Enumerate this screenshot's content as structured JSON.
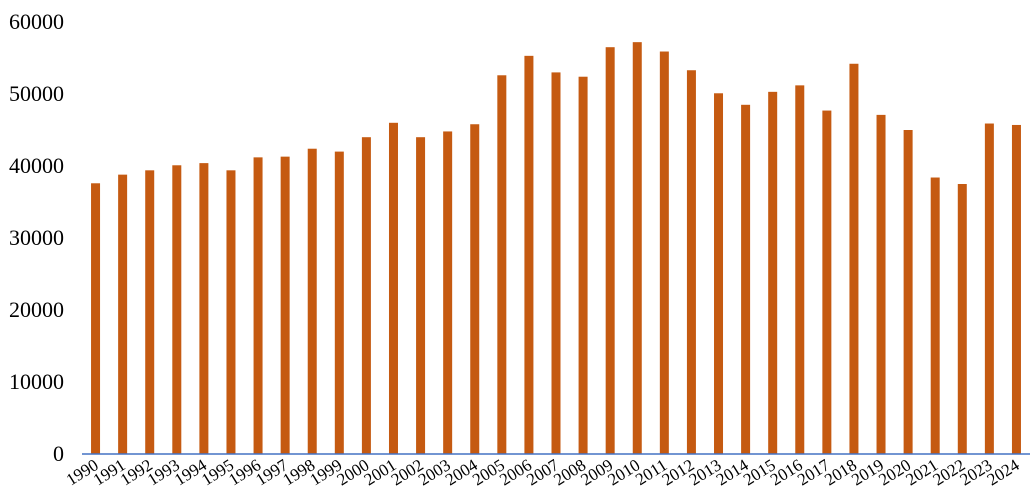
{
  "colors": {
    "bar": "#C55A11",
    "axis_line": "#4472C4",
    "text": "#000000",
    "background": "#FFFFFF"
  },
  "chart_data": {
    "type": "bar",
    "title": "",
    "xlabel": "",
    "ylabel": "",
    "ylim": [
      0,
      60000
    ],
    "yticks": [
      0,
      10000,
      20000,
      30000,
      40000,
      50000,
      60000
    ],
    "grid": false,
    "legend": "none",
    "categories": [
      "1990",
      "1991",
      "1992",
      "1993",
      "1994",
      "1995",
      "1996",
      "1997",
      "1998",
      "1999",
      "2000",
      "2001",
      "2002",
      "2003",
      "2004",
      "2005",
      "2006",
      "2007",
      "2008",
      "2009",
      "2010",
      "2011",
      "2012",
      "2013",
      "2014",
      "2015",
      "2016",
      "2017",
      "2018",
      "2019",
      "2020",
      "2021",
      "2022",
      "2023",
      "2024"
    ],
    "values": [
      37600,
      38800,
      39400,
      40100,
      40400,
      39400,
      41200,
      41300,
      42400,
      42000,
      44000,
      46000,
      44000,
      44800,
      45800,
      52600,
      55300,
      53000,
      52400,
      56500,
      57200,
      55900,
      53300,
      50100,
      48500,
      50300,
      51200,
      47700,
      54200,
      47100,
      45000,
      38400,
      37500,
      45900,
      45700
    ]
  }
}
